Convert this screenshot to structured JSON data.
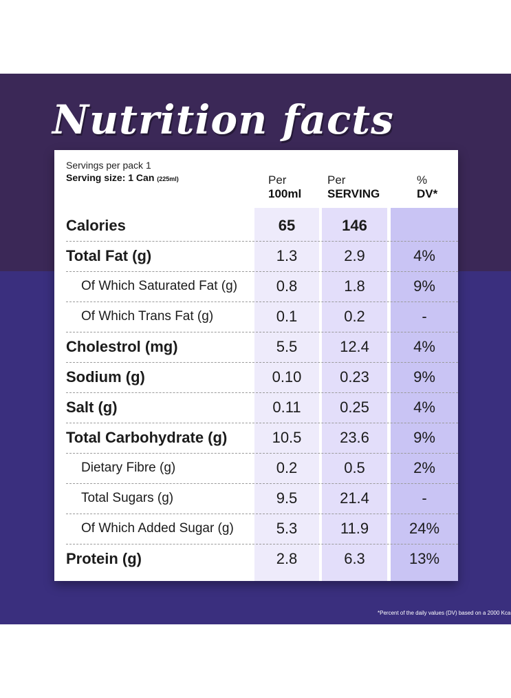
{
  "title": "Nutrition facts",
  "servings_per_pack": "Servings per pack 1",
  "serving_size": {
    "label": "Serving size: 1 Can",
    "detail": "(225ml)"
  },
  "headers": [
    {
      "top": "Per",
      "bottom": "100ml"
    },
    {
      "top": "Per",
      "bottom": "SERVING"
    },
    {
      "top": "%",
      "bottom": "DV*"
    }
  ],
  "rows": [
    {
      "label": "Calories",
      "per100": "65",
      "serving": "146",
      "dv": ""
    },
    {
      "label": "Total Fat (g)",
      "per100": "1.3",
      "serving": "2.9",
      "dv": "4%"
    },
    {
      "label": "Of Which Saturated Fat (g)",
      "per100": "0.8",
      "serving": "1.8",
      "dv": "9%"
    },
    {
      "label": "Of Which Trans Fat (g)",
      "per100": "0.1",
      "serving": "0.2",
      "dv": "-"
    },
    {
      "label": "Cholestrol (mg)",
      "per100": "5.5",
      "serving": "12.4",
      "dv": "4%"
    },
    {
      "label": "Sodium (g)",
      "per100": "0.10",
      "serving": "0.23",
      "dv": "9%"
    },
    {
      "label": "Salt (g)",
      "per100": "0.11",
      "serving": "0.25",
      "dv": "4%"
    },
    {
      "label": "Total Carbohydrate (g)",
      "per100": "10.5",
      "serving": "23.6",
      "dv": "9%"
    },
    {
      "label": "Dietary Fibre (g)",
      "per100": "0.2",
      "serving": "0.5",
      "dv": "2%"
    },
    {
      "label": "Total Sugars (g)",
      "per100": "9.5",
      "serving": "21.4",
      "dv": "-"
    },
    {
      "label": "Of Which Added Sugar (g)",
      "per100": "5.3",
      "serving": "11.9",
      "dv": "24%"
    },
    {
      "label": "Protein (g)",
      "per100": "2.8",
      "serving": "6.3",
      "dv": "13%"
    }
  ],
  "footnote": "*Percent of the daily values (DV) based on a 2000 Kca",
  "colors": {
    "band_top": "#3b2857",
    "band_bottom": "#3a2f7e",
    "dv_column": "#c9c4f4"
  }
}
